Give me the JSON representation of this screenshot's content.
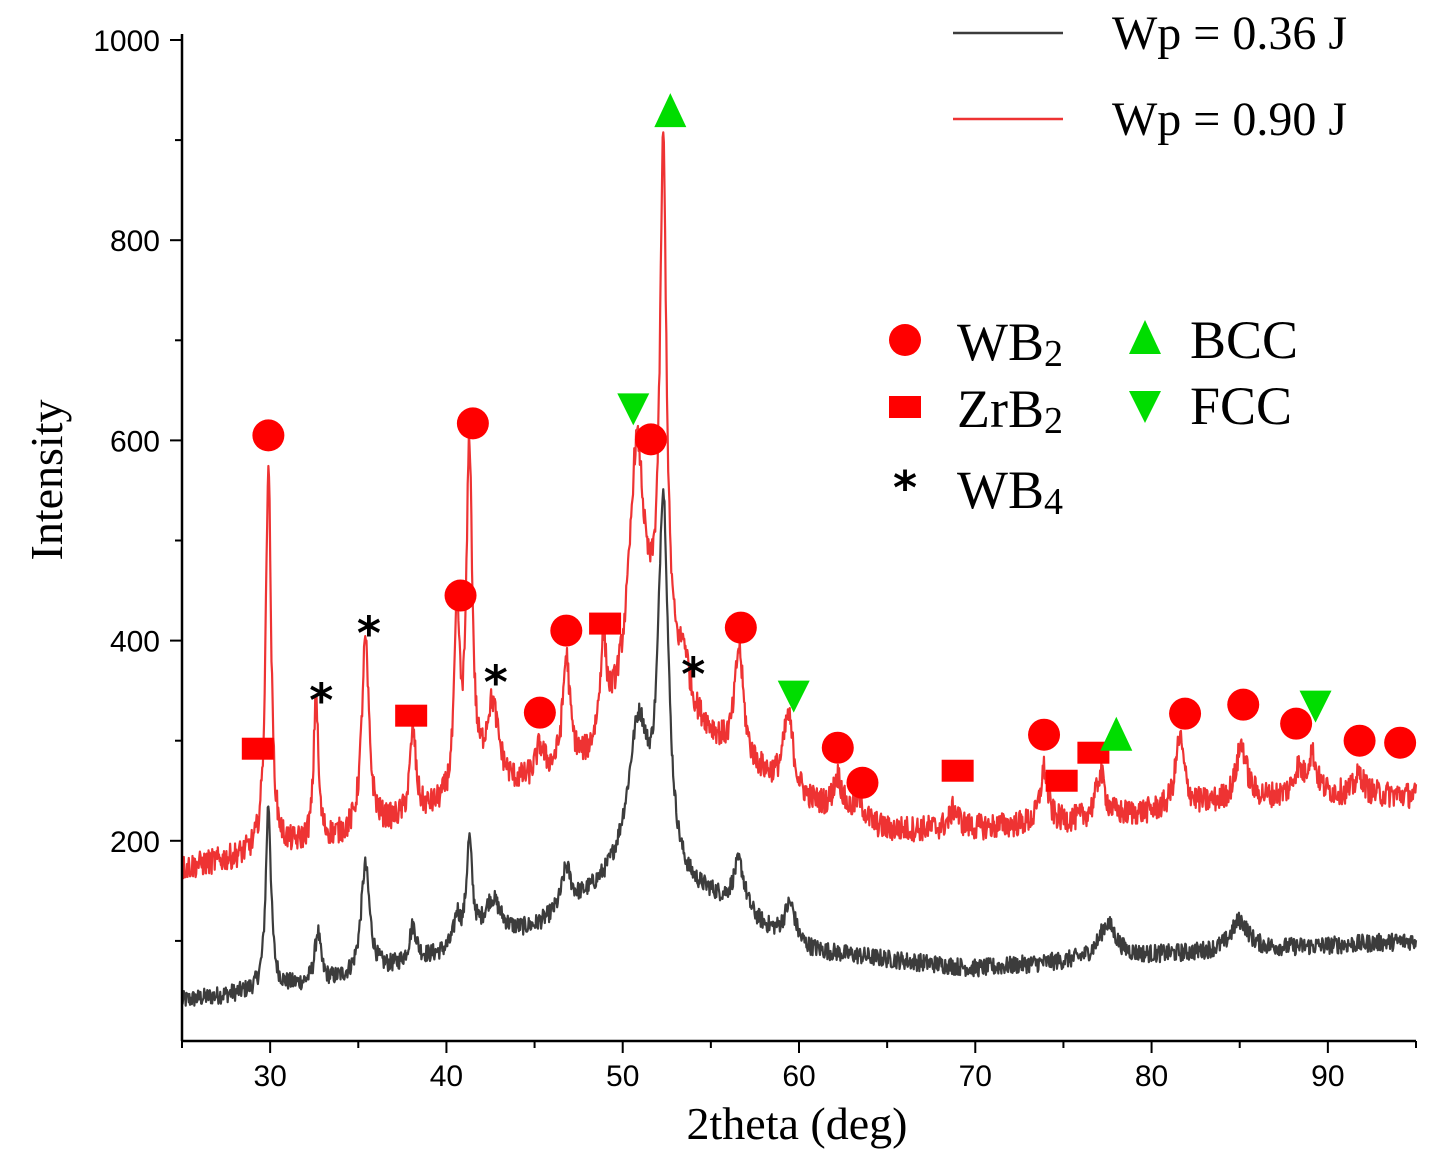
{
  "chart_data": {
    "type": "line",
    "xlabel": "2theta (deg)",
    "ylabel": "Intensity",
    "xlim": [
      25,
      95
    ],
    "ylim": [
      0,
      1000
    ],
    "xticks": [
      30,
      40,
      50,
      60,
      70,
      80,
      90
    ],
    "yticks": [
      200,
      400,
      600,
      800,
      1000
    ],
    "legend_position": "top-right",
    "series": [
      {
        "name": "Wp = 0.36 J",
        "color": "#3c3c3c",
        "baseline": [
          [
            25,
            40
          ],
          [
            35,
            62
          ],
          [
            45,
            110
          ],
          [
            50,
            160
          ],
          [
            55,
            140
          ],
          [
            60,
            90
          ],
          [
            70,
            72
          ],
          [
            80,
            85
          ],
          [
            95,
            100
          ]
        ],
        "peaks": [
          [
            29.9,
            185,
            0.18
          ],
          [
            32.7,
            50,
            0.2
          ],
          [
            35.4,
            110,
            0.3
          ],
          [
            38.1,
            35,
            0.25
          ],
          [
            40.6,
            30,
            0.2
          ],
          [
            41.3,
            100,
            0.2
          ],
          [
            42.6,
            40,
            0.6
          ],
          [
            46.8,
            40,
            0.3
          ],
          [
            50.9,
            150,
            0.7
          ],
          [
            52.3,
            370,
            0.35
          ],
          [
            56.6,
            50,
            0.4
          ],
          [
            59.5,
            40,
            0.4
          ],
          [
            77.5,
            35,
            0.6
          ],
          [
            85.0,
            30,
            0.6
          ]
        ]
      },
      {
        "name": "Wp = 0.90 J",
        "color": "#ee3333",
        "baseline": [
          [
            25,
            172
          ],
          [
            30,
            188
          ],
          [
            35,
            205
          ],
          [
            40,
            232
          ],
          [
            45,
            255
          ],
          [
            48,
            275
          ],
          [
            50,
            330
          ],
          [
            52,
            380
          ],
          [
            54,
            320
          ],
          [
            56,
            285
          ],
          [
            60,
            240
          ],
          [
            65,
            210
          ],
          [
            70,
            212
          ],
          [
            75,
            218
          ],
          [
            80,
            228
          ],
          [
            85,
            240
          ],
          [
            90,
            246
          ],
          [
            95,
            245
          ]
        ],
        "peaks": [
          [
            29.9,
            390,
            0.18
          ],
          [
            32.6,
            150,
            0.15
          ],
          [
            35.4,
            190,
            0.25
          ],
          [
            38.1,
            85,
            0.2
          ],
          [
            40.6,
            180,
            0.18
          ],
          [
            41.3,
            345,
            0.2
          ],
          [
            42.6,
            85,
            0.45
          ],
          [
            45.3,
            30,
            0.3
          ],
          [
            46.8,
            110,
            0.25
          ],
          [
            48.9,
            90,
            0.2
          ],
          [
            50.8,
            240,
            0.5
          ],
          [
            52.3,
            505,
            0.22
          ],
          [
            53.5,
            40,
            0.3
          ],
          [
            56.6,
            110,
            0.3
          ],
          [
            59.4,
            75,
            0.35
          ],
          [
            62.2,
            35,
            0.3
          ],
          [
            63.4,
            20,
            0.3
          ],
          [
            68.8,
            20,
            0.3
          ],
          [
            73.9,
            55,
            0.25
          ],
          [
            77.1,
            45,
            0.3
          ],
          [
            81.6,
            70,
            0.3
          ],
          [
            85.1,
            55,
            0.35
          ],
          [
            88.3,
            25,
            0.3
          ],
          [
            89.1,
            40,
            0.3
          ],
          [
            91.8,
            20,
            0.3
          ]
        ]
      }
    ],
    "phase_legend": [
      {
        "symbol": "circle",
        "label": "WB",
        "sub": "2"
      },
      {
        "symbol": "square",
        "label": "ZrB",
        "sub": "2"
      },
      {
        "symbol": "star",
        "label": "WB",
        "sub": "4"
      },
      {
        "symbol": "triangle-up",
        "label": "BCC",
        "sub": ""
      },
      {
        "symbol": "triangle-down",
        "label": "FCC",
        "sub": ""
      }
    ],
    "phase_markers": [
      {
        "phase": "WB2",
        "symbol": "circle",
        "x": 29.9,
        "y": 605
      },
      {
        "phase": "WB2",
        "symbol": "circle",
        "x": 41.5,
        "y": 617
      },
      {
        "phase": "WB2",
        "symbol": "circle",
        "x": 40.8,
        "y": 445
      },
      {
        "phase": "WB2",
        "symbol": "circle",
        "x": 46.8,
        "y": 410
      },
      {
        "phase": "WB2",
        "symbol": "circle",
        "x": 45.3,
        "y": 328
      },
      {
        "phase": "WB2",
        "symbol": "circle",
        "x": 51.6,
        "y": 601
      },
      {
        "phase": "WB2",
        "symbol": "circle",
        "x": 56.7,
        "y": 413
      },
      {
        "phase": "WB2",
        "symbol": "circle",
        "x": 62.2,
        "y": 293
      },
      {
        "phase": "WB2",
        "symbol": "circle",
        "x": 63.6,
        "y": 258
      },
      {
        "phase": "WB2",
        "symbol": "circle",
        "x": 73.9,
        "y": 306
      },
      {
        "phase": "WB2",
        "symbol": "circle",
        "x": 81.9,
        "y": 327
      },
      {
        "phase": "WB2",
        "symbol": "circle",
        "x": 85.2,
        "y": 336
      },
      {
        "phase": "WB2",
        "symbol": "circle",
        "x": 88.2,
        "y": 317
      },
      {
        "phase": "WB2",
        "symbol": "circle",
        "x": 91.8,
        "y": 300
      },
      {
        "phase": "WB2",
        "symbol": "circle",
        "x": 94.1,
        "y": 298
      },
      {
        "phase": "ZrB2",
        "symbol": "square",
        "x": 29.3,
        "y": 292
      },
      {
        "phase": "ZrB2",
        "symbol": "square",
        "x": 38.0,
        "y": 325
      },
      {
        "phase": "ZrB2",
        "symbol": "square",
        "x": 49.0,
        "y": 417
      },
      {
        "phase": "ZrB2",
        "symbol": "square",
        "x": 69.0,
        "y": 270
      },
      {
        "phase": "ZrB2",
        "symbol": "square",
        "x": 74.9,
        "y": 260
      },
      {
        "phase": "ZrB2",
        "symbol": "square",
        "x": 76.7,
        "y": 288
      },
      {
        "phase": "WB4",
        "symbol": "star",
        "x": 32.9,
        "y": 346
      },
      {
        "phase": "WB4",
        "symbol": "star",
        "x": 35.6,
        "y": 413
      },
      {
        "phase": "WB4",
        "symbol": "star",
        "x": 42.8,
        "y": 364
      },
      {
        "phase": "WB4",
        "symbol": "star",
        "x": 54.0,
        "y": 372
      },
      {
        "phase": "BCC",
        "symbol": "triangle-up",
        "x": 52.7,
        "y": 927
      },
      {
        "phase": "BCC",
        "symbol": "triangle-up",
        "x": 78.0,
        "y": 304
      },
      {
        "phase": "FCC",
        "symbol": "triangle-down",
        "x": 50.6,
        "y": 633
      },
      {
        "phase": "FCC",
        "symbol": "triangle-down",
        "x": 59.7,
        "y": 346
      },
      {
        "phase": "FCC",
        "symbol": "triangle-down",
        "x": 89.3,
        "y": 336
      }
    ]
  },
  "colors": {
    "wb2": "#ff0000",
    "zrb2": "#ff0000",
    "wb4": "#000000",
    "bcc": "#00dd00",
    "fcc": "#00dd00"
  }
}
